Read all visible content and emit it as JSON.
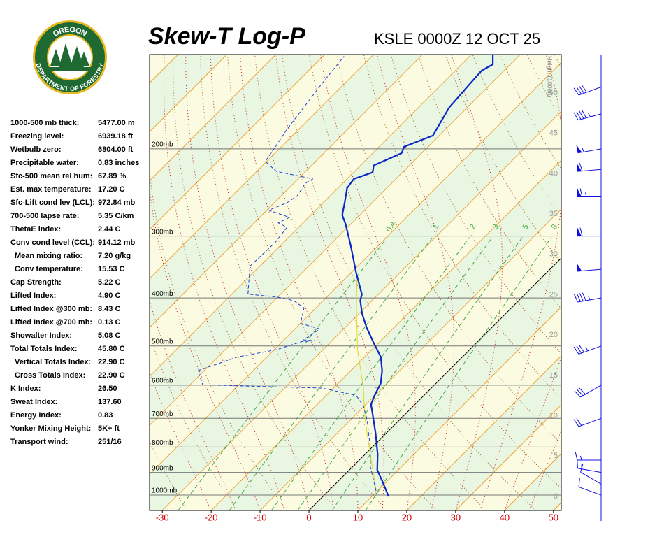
{
  "chart_data": {
    "type": "skewt",
    "title": "Skew-T Log-P",
    "subtitle": "KSLE 0000Z 12 OCT 25",
    "logo": {
      "top": "OREGON",
      "bottom": "DEPARTMENT OF FORESTRY"
    },
    "height_label": "Height (1000ft)",
    "xlim": [
      -32.6,
      51.6
    ],
    "xticks": [
      -30,
      -20,
      -10,
      0,
      10,
      20,
      30,
      40,
      50
    ],
    "freezing_isotherm": 0,
    "plim": [
      1074,
      129
    ],
    "pticks": [
      {
        "value": 1000,
        "label": "1000mb"
      },
      {
        "value": 900,
        "label": "900mb"
      },
      {
        "value": 800,
        "label": "800mb"
      },
      {
        "value": 700,
        "label": "700mb"
      },
      {
        "value": 600,
        "label": "600mb"
      },
      {
        "value": 500,
        "label": "500mb"
      },
      {
        "value": 400,
        "label": "400mb"
      },
      {
        "value": 300,
        "label": "300mb"
      },
      {
        "value": 200,
        "label": "200mb"
      }
    ],
    "height_lim": [
      0,
      50
    ],
    "height_ticks": [
      0,
      5,
      10,
      15,
      20,
      25,
      30,
      35,
      40,
      45,
      50
    ],
    "mixing_ratios": [
      0.4,
      1,
      2,
      3,
      5,
      8
    ],
    "colors": {
      "bands": [
        "#fbfbe2",
        "#e8f6e2"
      ],
      "isotherm": "#f0a030",
      "dry": "#a06020",
      "moist": "#cc2020",
      "mixing": "#44aa44",
      "pressure": "#777777"
    },
    "temperature": {
      "color": "#0a28c8",
      "p": [
        1006,
        943,
        890,
        828,
        751,
        682,
        656,
        629,
        595,
        561,
        526,
        493,
        459,
        430,
        405,
        393,
        356,
        313,
        284,
        272,
        257,
        240,
        230,
        223,
        216,
        204,
        198,
        188,
        165,
        148,
        139,
        135,
        129
      ],
      "t": [
        13.4,
        9.4,
        5.7,
        2.6,
        -2.1,
        -7.0,
        -9.0,
        -10.1,
        -11.3,
        -13.6,
        -16.7,
        -21.0,
        -25.6,
        -29.4,
        -32.4,
        -33.4,
        -38.9,
        -45.7,
        -51.0,
        -53.6,
        -55.6,
        -58.1,
        -58.6,
        -56.1,
        -57.3,
        -54.1,
        -54.9,
        -51.3,
        -53.7,
        -54.3,
        -54.6,
        -53.6,
        -55.6
      ]
    },
    "dewpoint": {
      "color": "#2040d0",
      "p": [
        1006,
        943,
        878,
        802,
        704,
        660,
        629,
        608,
        599,
        561,
        526,
        509,
        490,
        488,
        486,
        462,
        450,
        419,
        405,
        398,
        393,
        345,
        308,
        288,
        282,
        275,
        266,
        257,
        249,
        235,
        230,
        222,
        212,
        197,
        183,
        148,
        130
      ],
      "t": [
        11.1,
        7.6,
        3.7,
        -0.3,
        -6.7,
        -10.3,
        -13.9,
        -22.4,
        -47.4,
        -51.3,
        -46.0,
        -39.6,
        -36.0,
        -33.6,
        -36.0,
        -34.9,
        -40.0,
        -42.4,
        -46.0,
        -50.3,
        -56.7,
        -62.0,
        -61.7,
        -62.4,
        -65.1,
        -63.9,
        -69.6,
        -67.4,
        -66.7,
        -67.6,
        -67.0,
        -76.0,
        -80.3,
        -81.3,
        -82.4,
        -84.6,
        -85.7
      ]
    },
    "parcel": {
      "color": "#e0d820",
      "p": [
        974,
        828,
        704,
        608,
        509,
        419,
        368
      ],
      "t": [
        9.4,
        1.1,
        -7.1,
        -13.9,
        -22.9,
        -31.7,
        -37.3
      ]
    },
    "winds": {
      "color": "#1010e0",
      "p": [
        1000,
        950,
        900,
        850,
        700,
        600,
        500,
        400,
        350,
        300,
        250,
        220,
        200,
        170,
        150
      ],
      "dir": [
        290,
        300,
        280,
        270,
        250,
        240,
        250,
        260,
        265,
        270,
        270,
        265,
        260,
        255,
        250
      ],
      "speed": [
        10,
        10,
        15,
        15,
        20,
        30,
        35,
        45,
        50,
        60,
        65,
        60,
        55,
        45,
        40
      ]
    },
    "indices": [
      {
        "label": "1000-500 mb thick:",
        "value": "5477.00 m"
      },
      {
        "label": "Freezing level:",
        "value": "6939.18 ft"
      },
      {
        "label": "Wetbulb zero:",
        "value": "6804.00 ft"
      },
      {
        "label": "Precipitable water:",
        "value": "0.83 inches"
      },
      {
        "label": "Sfc-500 mean rel hum:",
        "value": "67.89 %"
      },
      {
        "label": "Est. max temperature:",
        "value": "17.20 C"
      },
      {
        "label": "Sfc-Lift cond lev (LCL):",
        "value": "972.84 mb"
      },
      {
        "label": "700-500 lapse rate:",
        "value": "5.35 C/km"
      },
      {
        "label": "ThetaE index:",
        "value": "2.44 C"
      },
      {
        "label": "Conv cond level (CCL):",
        "value": "914.12 mb",
        "sub": [
          {
            "label": "Mean mixing ratio:",
            "value": "7.20 g/kg"
          },
          {
            "label": "Conv temperature:",
            "value": "15.53 C"
          }
        ]
      },
      {
        "label": "Cap Strength:",
        "value": "5.22 C"
      },
      {
        "label": "Lifted Index:",
        "value": "4.90 C"
      },
      {
        "label": "Lifted Index @300 mb:",
        "value": "8.43 C"
      },
      {
        "label": "Lifted Index @700 mb:",
        "value": "0.13 C"
      },
      {
        "label": "Showalter Index:",
        "value": "5.08 C"
      },
      {
        "label": "Total Totals Index:",
        "value": "45.80 C",
        "sub": [
          {
            "label": "Vertical Totals Index:",
            "value": "22.90 C"
          },
          {
            "label": "Cross Totals Index:",
            "value": "22.90 C"
          }
        ]
      },
      {
        "label": "K Index:",
        "value": "26.50"
      },
      {
        "label": "Sweat Index:",
        "value": "137.60"
      },
      {
        "label": "Energy Index:",
        "value": "0.83"
      },
      {
        "label": "Yonker Mixing Height:",
        "value": "5K+ ft"
      },
      {
        "label": "Transport wind:",
        "value": "251/16"
      }
    ]
  }
}
